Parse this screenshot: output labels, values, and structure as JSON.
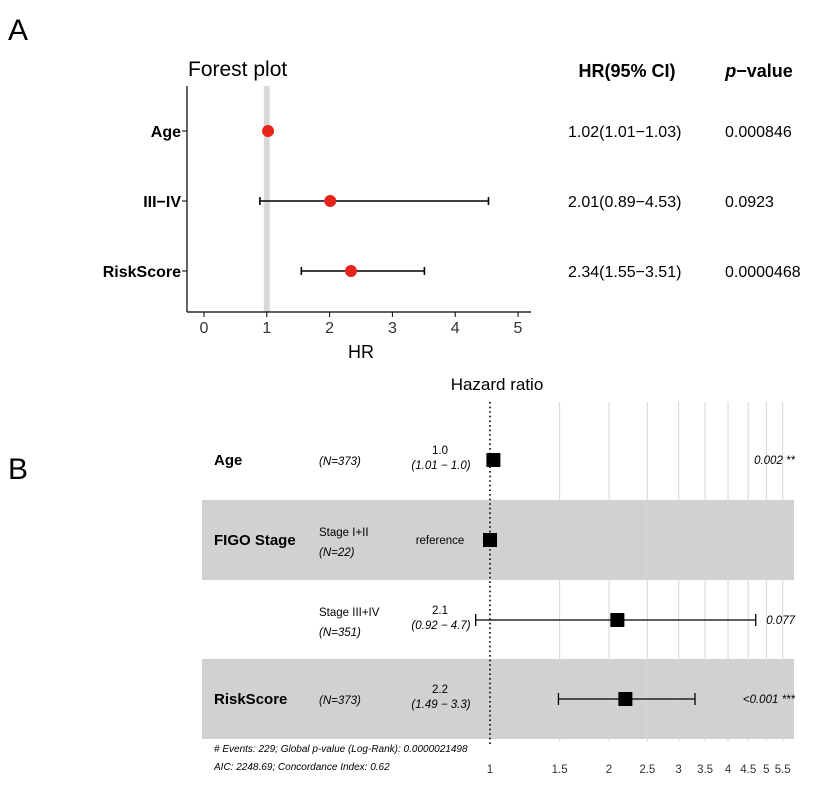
{
  "panel_a": {
    "label": "A",
    "title": "Forest plot",
    "xlabel": "HR",
    "col_hr_header": "HR(95% CI)",
    "col_p_header_italic": "p",
    "col_p_header_rest": "−value",
    "colors": {
      "point": "#e8231b",
      "refline": "#d9d9d9",
      "bar": "#000000"
    }
  },
  "panel_b": {
    "label": "B",
    "title": "Hazard ratio",
    "footer_line1": "# Events: 229; Global p-value (Log-Rank): 0.0000021498",
    "footer_line2": "AIC: 2248.69; Concordance Index: 0.62",
    "colors": {
      "band": "#d1d1d1",
      "marker": "#000000",
      "grid": "#d6d6d6"
    }
  },
  "chart_data": [
    {
      "type": "forest",
      "title": "Forest plot",
      "xlabel": "HR",
      "xlim": [
        0,
        5
      ],
      "xticks": [
        0,
        1,
        2,
        3,
        4,
        5
      ],
      "reference_line": 1,
      "rows": [
        {
          "label": "Age",
          "hr": 1.02,
          "lower": 1.01,
          "upper": 1.03,
          "hr_text": "1.02(1.01−1.03)",
          "p_text": "0.000846"
        },
        {
          "label": "III−IV",
          "hr": 2.01,
          "lower": 0.89,
          "upper": 4.53,
          "hr_text": "2.01(0.89−4.53)",
          "p_text": "0.0923"
        },
        {
          "label": "RiskScore",
          "hr": 2.34,
          "lower": 1.55,
          "upper": 3.51,
          "hr_text": "2.34(1.55−3.51)",
          "p_text": "0.0000468"
        }
      ]
    },
    {
      "type": "forest",
      "title": "Hazard ratio",
      "scale": "log",
      "xticks": [
        1,
        1.5,
        2,
        2.5,
        3,
        3.5,
        4,
        4.5,
        5,
        5.5
      ],
      "xtick_labels": [
        "1",
        "1.5",
        "2",
        "2.5",
        "3",
        "3.5",
        "4",
        "4.5",
        "5",
        "5.5"
      ],
      "reference_line": 1,
      "rows": [
        {
          "variable": "Age",
          "level": "",
          "n": "(N=373)",
          "hr": 1.02,
          "lower": 1.01,
          "upper": 1.03,
          "hr_text": "1.0",
          "ci_text": "(1.01 − 1.0)",
          "p_text": "0.002 **",
          "shaded": false,
          "reference": false
        },
        {
          "variable": "FIGO Stage",
          "level": "Stage I+II",
          "n": "(N=22)",
          "hr": 1.0,
          "hr_text": "reference",
          "shaded": true,
          "reference": true
        },
        {
          "variable": "",
          "level": "Stage III+IV",
          "n": "(N=351)",
          "hr": 2.1,
          "lower": 0.92,
          "upper": 4.7,
          "hr_text": "2.1",
          "ci_text": "(0.92 − 4.7)",
          "p_text": "0.077",
          "shaded": false,
          "reference": false
        },
        {
          "variable": "RiskScore",
          "level": "",
          "n": "(N=373)",
          "hr": 2.2,
          "lower": 1.49,
          "upper": 3.3,
          "hr_text": "2.2",
          "ci_text": "(1.49 − 3.3)",
          "p_text": "<0.001 ***",
          "shaded": true,
          "reference": false
        }
      ]
    }
  ]
}
